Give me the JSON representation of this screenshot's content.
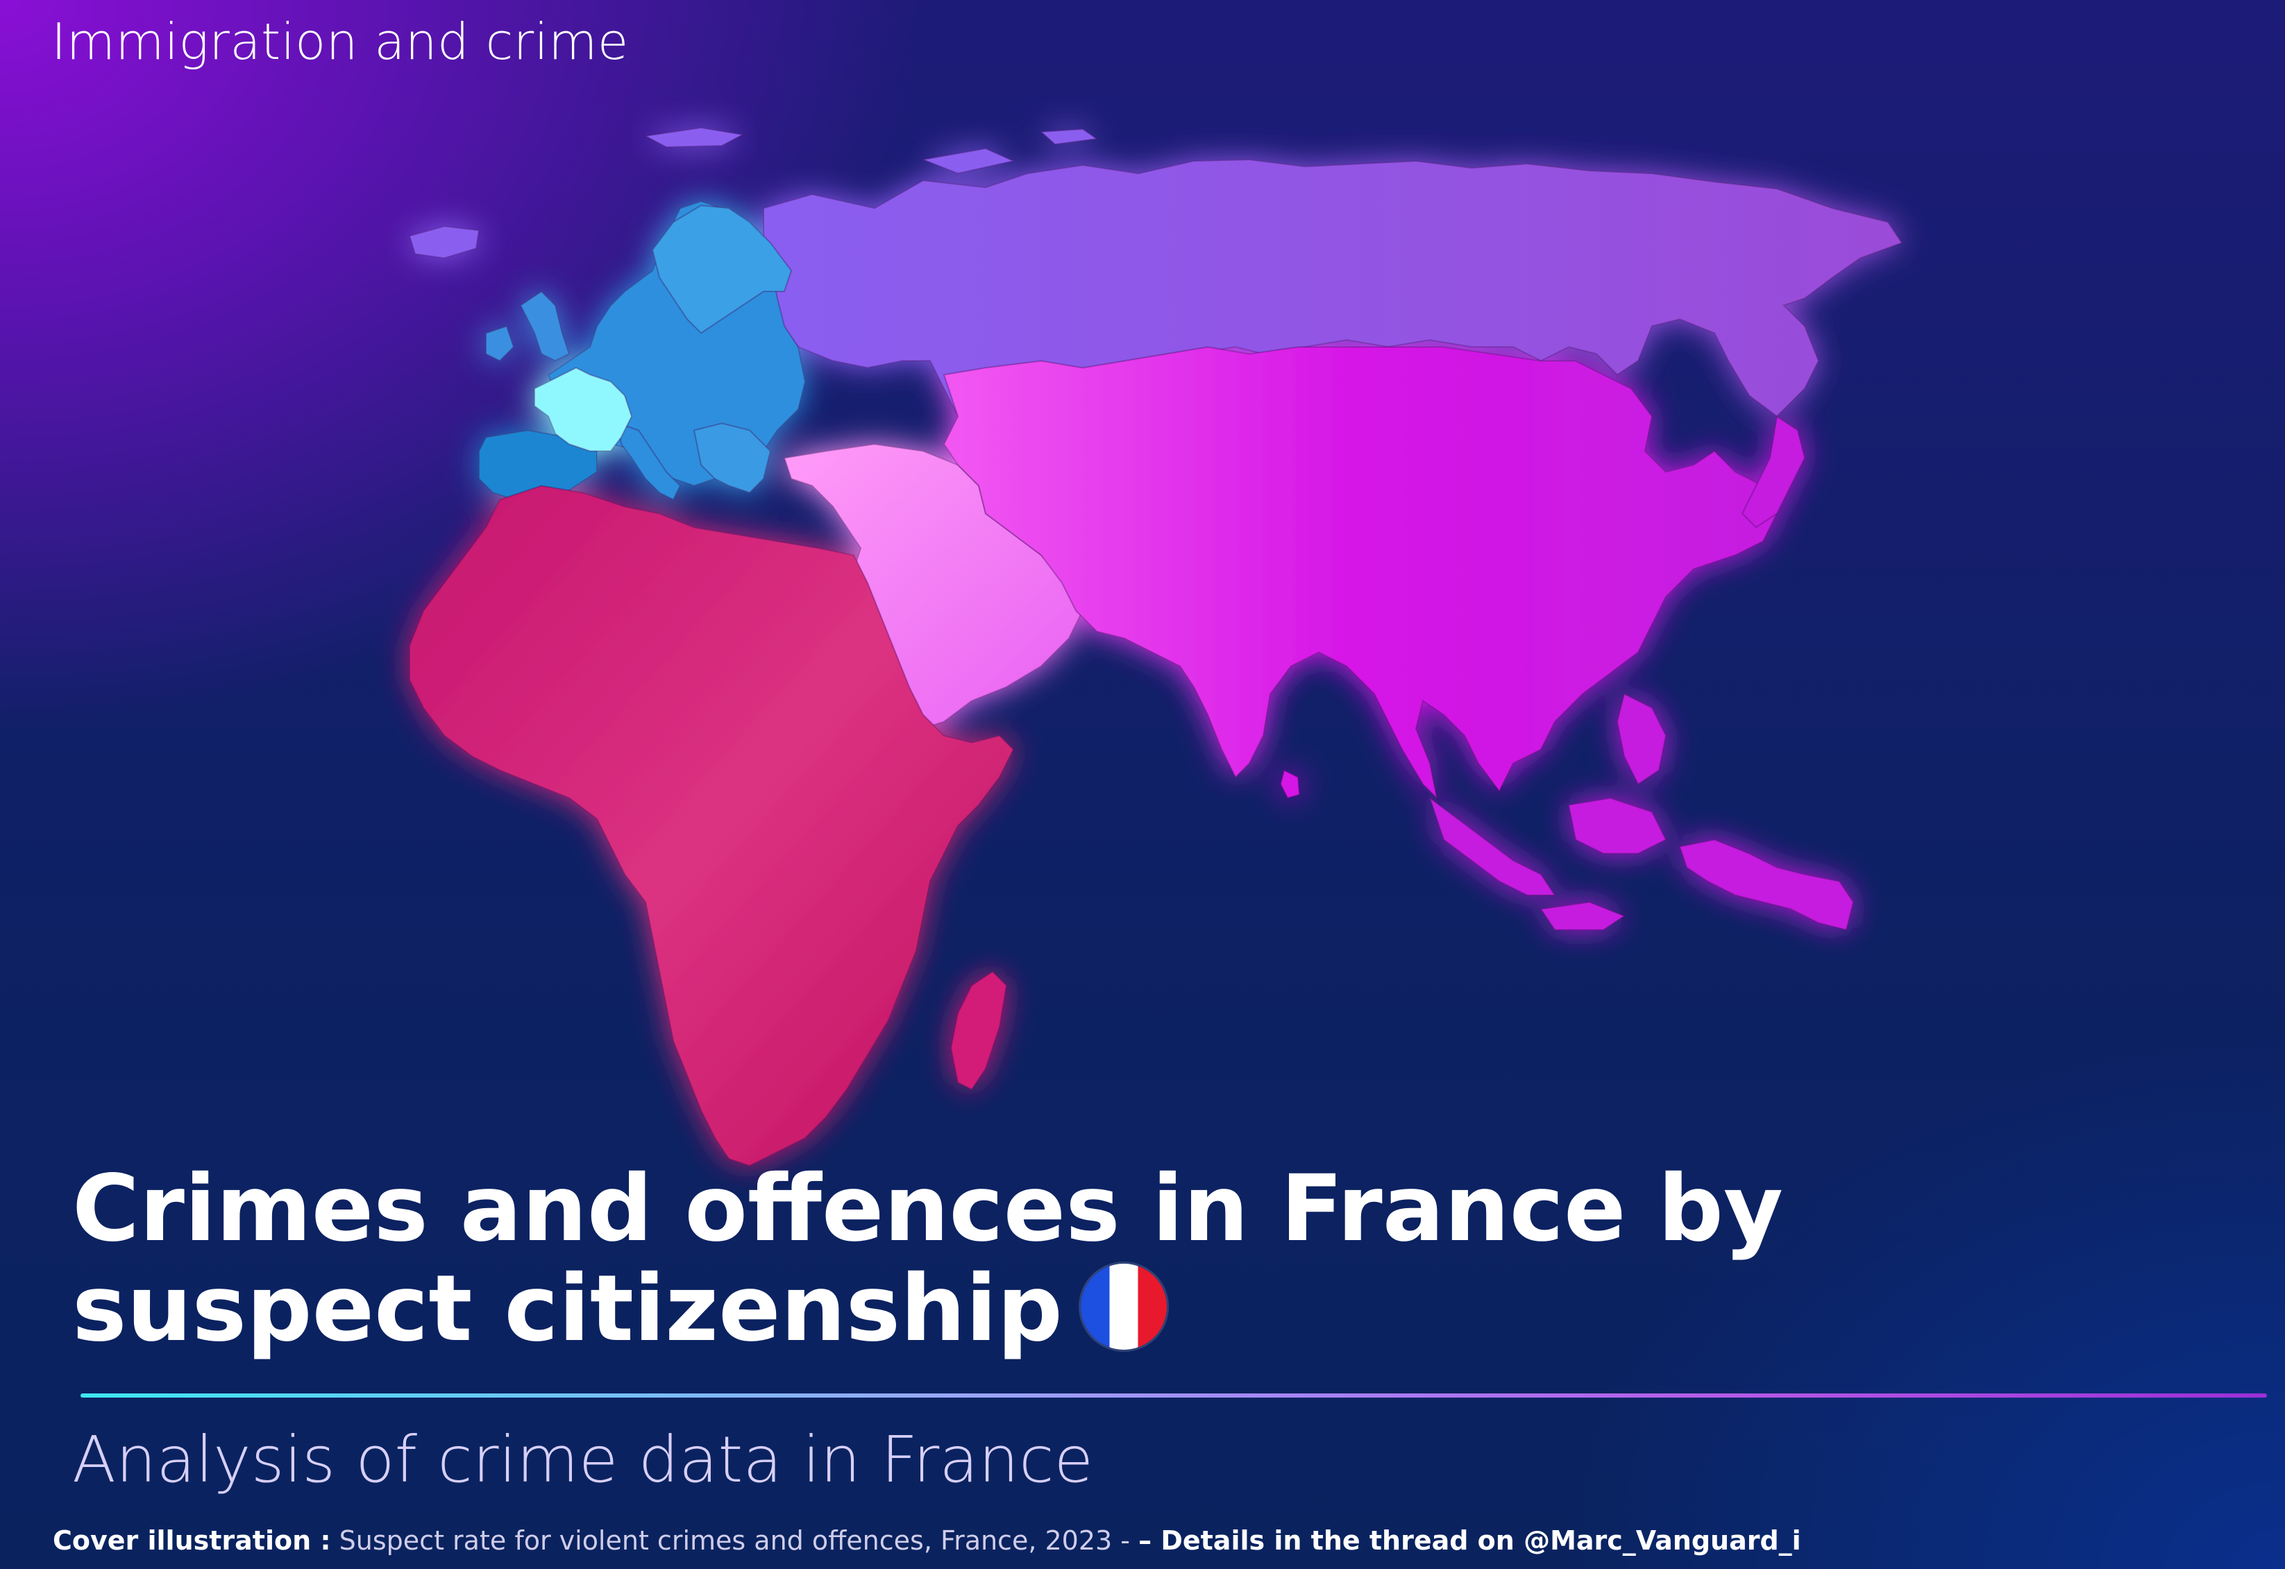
{
  "header": {
    "kicker": "Immigration and crime"
  },
  "title": {
    "main": "Crimes and offences in France by suspect citizenship",
    "flag_icon": "france-flag-icon"
  },
  "subtitle": "Analysis of crime data in France",
  "caption": {
    "label": "Cover illustration :",
    "text": "Suspect rate for violent crimes and offences, France, 2023 -",
    "details": "– Details in the thread on @Marc_Vanguard_i"
  },
  "map": {
    "regions": [
      {
        "name": "france",
        "color": "#8ff8ff"
      },
      {
        "name": "europe",
        "color": "#2f8fde"
      },
      {
        "name": "russia",
        "color": "#8c55e6"
      },
      {
        "name": "middle-east",
        "color": "#f27af8"
      },
      {
        "name": "asia",
        "color": "#d21ee8"
      },
      {
        "name": "africa",
        "color": "#d21f78"
      }
    ]
  }
}
